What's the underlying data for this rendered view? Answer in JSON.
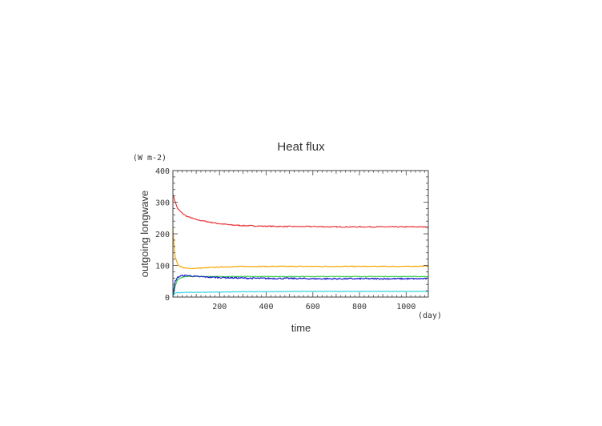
{
  "chart_data": {
    "type": "line",
    "title": "Heat flux",
    "xlabel": "time",
    "ylabel": "outgoing longwave",
    "x_unit": "(day)",
    "y_unit": "(W m-2)",
    "xlim": [
      0,
      1095
    ],
    "ylim": [
      0,
      400
    ],
    "x_ticks": [
      200,
      400,
      600,
      800,
      1000
    ],
    "y_ticks": [
      0,
      100,
      200,
      300,
      400
    ],
    "grid": false,
    "series": [
      {
        "color": "#e8373a",
        "x": [
          0,
          10,
          20,
          40,
          60,
          100,
          150,
          200,
          250,
          300,
          400,
          500,
          600,
          700,
          800,
          900,
          1000,
          1095
        ],
        "y": [
          325,
          300,
          280,
          265,
          255,
          245,
          238,
          232,
          228,
          226,
          224,
          223,
          223,
          222,
          222,
          222,
          222,
          222
        ]
      },
      {
        "color": "#f5a800",
        "x": [
          0,
          5,
          10,
          20,
          30,
          50,
          70,
          100,
          150,
          200,
          250,
          300,
          400,
          500,
          600,
          700,
          800,
          900,
          1000,
          1095
        ],
        "y": [
          215,
          160,
          125,
          105,
          97,
          92,
          90,
          91,
          93,
          95,
          96,
          97,
          97,
          97,
          97,
          97,
          97,
          97,
          97,
          98
        ]
      },
      {
        "color": "#33cc44",
        "x": [
          0,
          10,
          20,
          40,
          60,
          100,
          200,
          400,
          600,
          800,
          1000,
          1095
        ],
        "y": [
          0,
          35,
          55,
          63,
          65,
          65,
          65,
          65,
          65,
          65,
          65,
          65
        ]
      },
      {
        "color": "#1a1acc",
        "x": [
          0,
          5,
          10,
          20,
          30,
          40,
          60,
          80,
          100,
          150,
          200,
          300,
          400,
          500,
          600,
          700,
          800,
          900,
          1000,
          1095
        ],
        "y": [
          0,
          30,
          50,
          62,
          66,
          68,
          68,
          67,
          65,
          63,
          62,
          60,
          59,
          59,
          58,
          58,
          58,
          58,
          58,
          58
        ]
      },
      {
        "color": "#2fd3e0",
        "x": [
          0,
          5,
          10,
          30,
          60,
          100,
          200,
          300,
          400,
          500,
          600,
          700,
          800,
          900,
          1000,
          1095
        ],
        "y": [
          0,
          10,
          13,
          14,
          15,
          15,
          16,
          17,
          17,
          18,
          18,
          18,
          18,
          18,
          18,
          18
        ]
      }
    ]
  }
}
